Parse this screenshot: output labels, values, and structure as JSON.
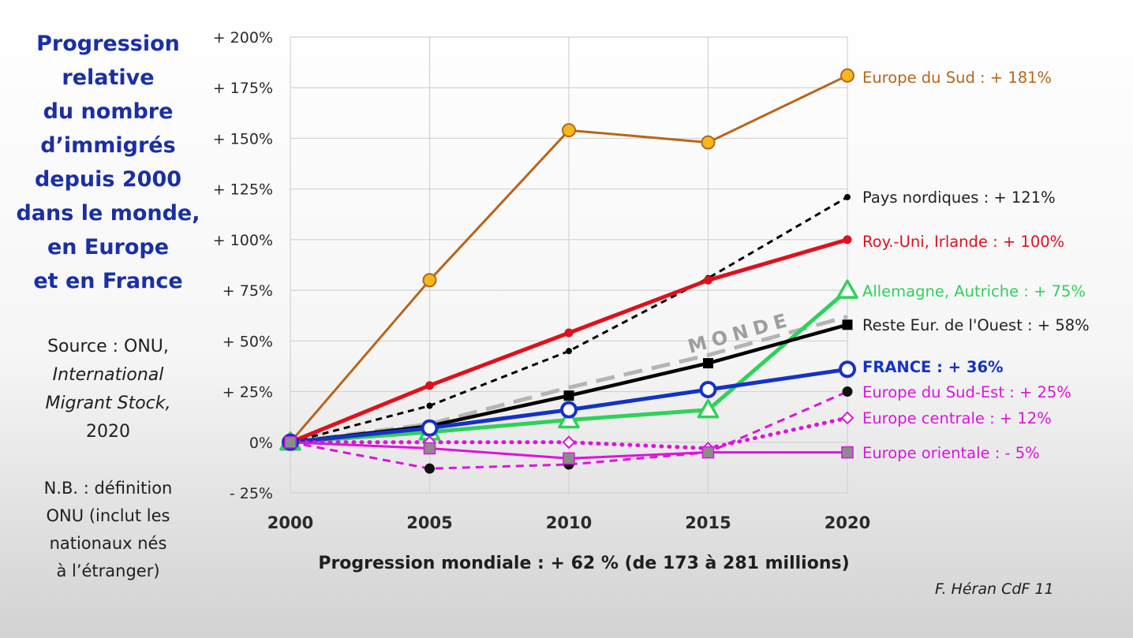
{
  "sidebar": {
    "title_lines": [
      "Progression",
      "relative",
      "du nombre",
      "d’immigrés",
      "depuis 2000",
      "dans le monde,",
      "en Europe",
      "et en France"
    ],
    "source_lines": [
      "Source : ONU,",
      "International",
      "Migrant Stock,",
      "2020"
    ],
    "note_lines": [
      "N.B. : définition",
      "ONU (inclut les",
      "nationaux nés",
      "à l’étranger)"
    ]
  },
  "footer": {
    "caption": "Progression mondiale : + 62 % (de 173 à 281 millions)",
    "credit": "F. Héran CdF  11"
  },
  "chart_data": {
    "type": "line",
    "x": [
      2000,
      2005,
      2010,
      2015,
      2020
    ],
    "x_tick_labels": [
      "2000",
      "2005",
      "2010",
      "2015",
      "2020"
    ],
    "ylim": [
      -25,
      200
    ],
    "y_ticks": [
      -25,
      0,
      25,
      50,
      75,
      100,
      125,
      150,
      175,
      200
    ],
    "y_tick_labels": [
      "- 25%",
      "0%",
      "+ 25%",
      "+ 50%",
      "+ 75%",
      "+ 100%",
      "+ 125%",
      "+ 150%",
      "+ 175%",
      "+ 200%"
    ],
    "grid": true,
    "legend": "end-of-line labels",
    "series": [
      {
        "key": "monde",
        "name": "MONDE",
        "values": [
          0,
          9,
          27,
          43,
          62
        ],
        "color": "#b4b4b4",
        "dash": "dashed",
        "marker": "none",
        "inline_label": true
      },
      {
        "key": "sud",
        "label": "Europe du Sud : + 181%",
        "values": [
          0,
          80,
          154,
          148,
          181
        ],
        "color": "#b8651a",
        "marker": "circle",
        "marker_fill": "#f3b81c"
      },
      {
        "key": "nordiques",
        "label": "Pays nordiques : + 121%",
        "values": [
          0,
          18,
          45,
          81,
          121
        ],
        "color": "#000000",
        "dash": "dashed",
        "marker": "dot"
      },
      {
        "key": "roy_uni",
        "label": "Roy.-Uni, Irlande : + 100%",
        "values": [
          0,
          28,
          54,
          80,
          100
        ],
        "color": "#e0101c",
        "marker": "dot"
      },
      {
        "key": "allemagne",
        "label": "Allemagne, Autriche : + 75%",
        "values": [
          0,
          5,
          11,
          16,
          75
        ],
        "color": "#2ed25a",
        "marker": "triangle"
      },
      {
        "key": "reste",
        "label": "Reste Eur. de l'Ouest : + 58%",
        "values": [
          0,
          8,
          23,
          39,
          58
        ],
        "color": "#000000",
        "marker": "square"
      },
      {
        "key": "france",
        "label": "FRANCE : + 36%",
        "values": [
          0,
          7,
          16,
          26,
          36
        ],
        "color": "#1432c8",
        "marker": "ring",
        "label_bold": true
      },
      {
        "key": "sud_est",
        "label": "Europe du Sud-Est : + 25%",
        "values": [
          0,
          -13,
          -11,
          -5,
          25
        ],
        "color": "#dc14dc",
        "dash": "dashed",
        "marker": "dot_black"
      },
      {
        "key": "centrale",
        "label": "Europe centrale : + 12%",
        "values": [
          0,
          0,
          0,
          -3,
          12
        ],
        "color": "#dc14dc",
        "dash": "dotted",
        "marker": "diamond"
      },
      {
        "key": "orientale",
        "label": "Europe orientale : - 5%",
        "values": [
          0,
          -3,
          -8,
          -5,
          -5
        ],
        "color": "#dc14dc",
        "marker": "square_grey"
      }
    ]
  }
}
